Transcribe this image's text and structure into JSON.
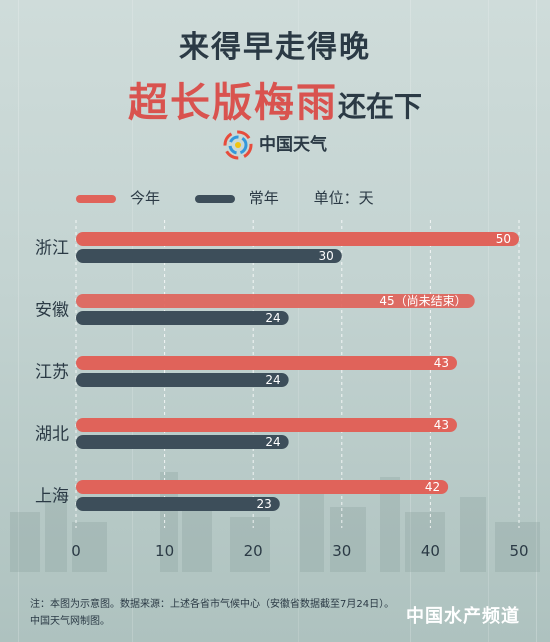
{
  "header": {
    "title_line1": "来得早走得晚",
    "title_line2_highlight": "超长版梅雨",
    "title_line2_rest": "还在下",
    "brand": "中国天气"
  },
  "legend": {
    "items": [
      {
        "label": "今年",
        "color": "#e0635a"
      },
      {
        "label": "常年",
        "color": "#3d4e5a"
      }
    ],
    "unit_label": "单位：天"
  },
  "chart_data": {
    "type": "bar",
    "orientation": "horizontal",
    "categories": [
      "浙江",
      "安徽",
      "江苏",
      "湖北",
      "上海"
    ],
    "series": [
      {
        "name": "今年",
        "color": "#e0635a",
        "values": [
          50,
          45,
          43,
          43,
          42
        ],
        "labels": [
          "50",
          "45（尚未结束）",
          "43",
          "43",
          "42"
        ]
      },
      {
        "name": "常年",
        "color": "#3d4e5a",
        "values": [
          30,
          24,
          24,
          24,
          23
        ],
        "labels": [
          "30",
          "24",
          "24",
          "24",
          "23"
        ]
      }
    ],
    "xticks": [
      0,
      10,
      20,
      30,
      40,
      50
    ],
    "xlim": [
      0,
      50
    ],
    "grid": true,
    "unit": "天"
  },
  "footnote": {
    "line1": "注：本图为示意图。数据来源：上述各省市气候中心（安徽省数据截至7月24日）。",
    "line2": "中国天气网制图。"
  },
  "watermark": "中国水产频道"
}
